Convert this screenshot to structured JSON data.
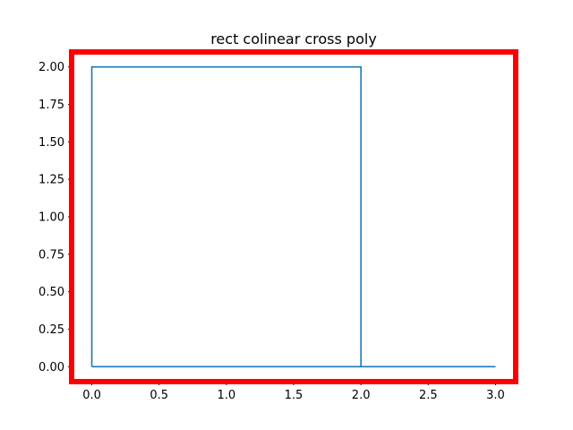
{
  "chart_data": {
    "type": "line",
    "title": "rect colinear cross poly",
    "xlabel": "",
    "ylabel": "",
    "xlim": [
      -0.15,
      3.15
    ],
    "ylim": [
      -0.1,
      2.1
    ],
    "x_ticks": [
      0.0,
      0.5,
      1.0,
      1.5,
      2.0,
      2.5,
      3.0
    ],
    "x_tick_labels": [
      "0.0",
      "0.5",
      "1.0",
      "1.5",
      "2.0",
      "2.5",
      "3.0"
    ],
    "y_ticks": [
      0.0,
      0.25,
      0.5,
      0.75,
      1.0,
      1.25,
      1.5,
      1.75,
      2.0
    ],
    "y_tick_labels": [
      "0.00",
      "0.25",
      "0.50",
      "0.75",
      "1.00",
      "1.25",
      "1.50",
      "1.75",
      "2.00"
    ],
    "grid": false,
    "legend": "none",
    "series": [
      {
        "x": [
          0,
          0,
          2,
          2,
          3,
          0
        ],
        "y": [
          0,
          2,
          2,
          0,
          0,
          0
        ],
        "color": "#1f77b4"
      }
    ],
    "highlight_color": "#ff0000"
  }
}
